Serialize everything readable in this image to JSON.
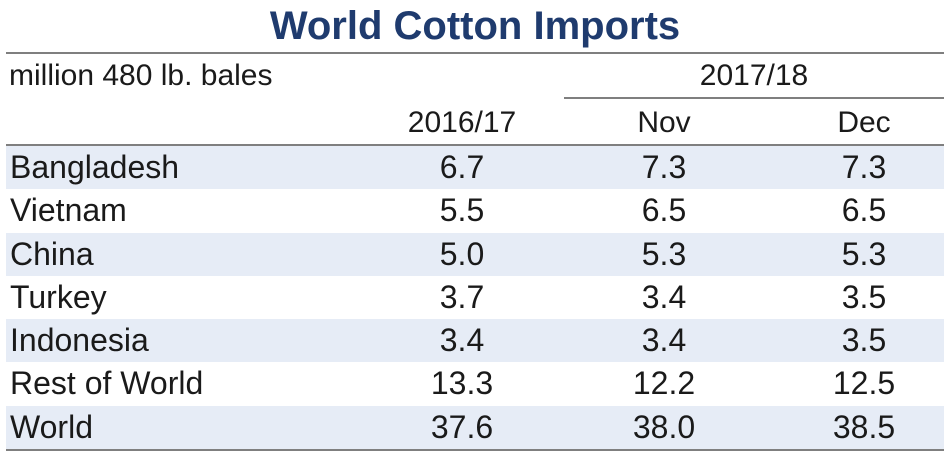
{
  "chart_data": {
    "type": "table",
    "title": "World Cotton Imports",
    "unit": "million 480 lb. bales",
    "group_header": "2017/18",
    "columns": [
      "2016/17",
      "Nov",
      "Dec"
    ],
    "rows": [
      {
        "label": "Bangladesh",
        "values": [
          "6.7",
          "7.3",
          "7.3"
        ]
      },
      {
        "label": "Vietnam",
        "values": [
          "5.5",
          "6.5",
          "6.5"
        ]
      },
      {
        "label": "China",
        "values": [
          "5.0",
          "5.3",
          "5.3"
        ]
      },
      {
        "label": "Turkey",
        "values": [
          "3.7",
          "3.4",
          "3.5"
        ]
      },
      {
        "label": "Indonesia",
        "values": [
          "3.4",
          "3.4",
          "3.5"
        ]
      },
      {
        "label": "Rest of World",
        "values": [
          "13.3",
          "12.2",
          "12.5"
        ]
      },
      {
        "label": "World",
        "values": [
          "37.6",
          "38.0",
          "38.5"
        ]
      }
    ]
  },
  "colors": {
    "title": "#1f3b6e",
    "row_shade": "#e6ecf6",
    "rules": "#7f7f7f"
  }
}
